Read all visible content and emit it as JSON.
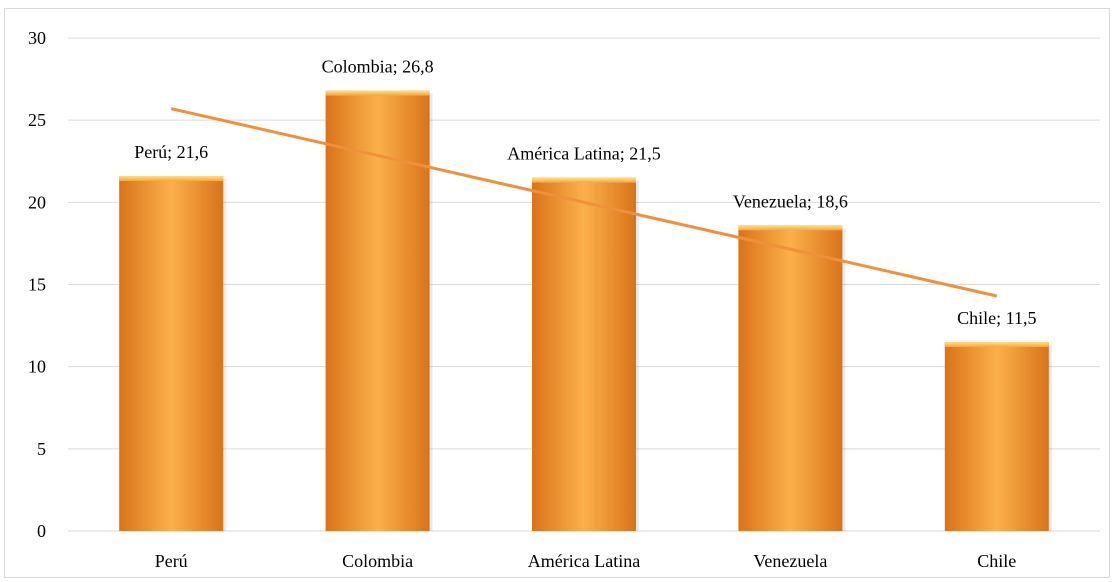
{
  "chart_data": {
    "type": "bar",
    "categories": [
      "Perú",
      "Colombia",
      "América Latina",
      "Venezuela",
      "Chile"
    ],
    "values": [
      21.6,
      26.8,
      21.5,
      18.6,
      11.5
    ],
    "data_labels": [
      "Perú; 21,6",
      "Colombia; 26,8",
      "América Latina; 21,5",
      "Venezuela; 18,6",
      "Chile; 11,5"
    ],
    "yticks": [
      "0",
      "5",
      "10",
      "15",
      "20",
      "25",
      "30"
    ],
    "ylim": [
      0,
      30
    ],
    "grid": true,
    "legend": "none",
    "trendline": {
      "type": "linear",
      "start": 25.7,
      "end": 14.3
    },
    "colors": {
      "bar": "#f59a2f",
      "bar_dark": "#d9731a",
      "bar_light": "#fbb04a",
      "trendline": "#f0903a",
      "grid": "#d9d9d9"
    }
  }
}
